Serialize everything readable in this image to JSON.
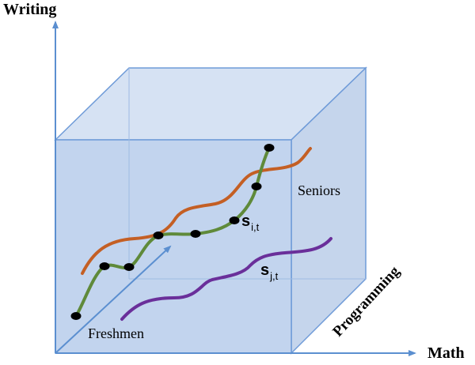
{
  "axes": {
    "writing": "Writing",
    "math": "Math",
    "programming": "Programming"
  },
  "labels": {
    "seniors": "Seniors",
    "freshmen": "Freshmen"
  },
  "trajectories": {
    "s_i": {
      "symbol": "s",
      "subscript": "i,t"
    },
    "s_j": {
      "symbol": "s",
      "subscript": "j,t"
    }
  },
  "colors": {
    "axis": "#5b8fd0",
    "cube_fill": "#d6e2f3",
    "cube_edge": "#6f9bd8",
    "curve_orange": "#c45f24",
    "curve_green": "#5f8a3a",
    "curve_purple": "#6a2f9a",
    "dot": "#000000"
  }
}
